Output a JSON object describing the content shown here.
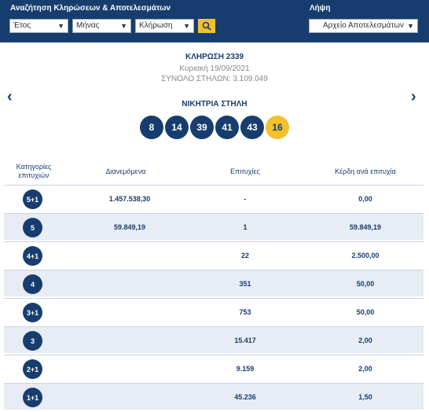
{
  "search": {
    "title": "Αναζήτηση Κληρώσεων & Αποτελεσμάτων",
    "year": "Έτος",
    "month": "Μήνας",
    "draw": "Κλήρωση"
  },
  "download": {
    "title": "Λήψη",
    "select": "Αρχείο Αποτελεσμάτων"
  },
  "result": {
    "draw_title": "ΚΛΗΡΩΣΗ 2339",
    "date": "Κυριακή 19/09/2021",
    "columns": "ΣΥΝΟΛΟ ΣΤΗΛΩΝ: 3.109.049",
    "winning_title": "ΝΙΚΗΤΡΙΑ ΣΤΗΛΗ",
    "numbers": [
      "8",
      "14",
      "39",
      "41",
      "43"
    ],
    "joker": "16"
  },
  "table": {
    "headers": {
      "category": "Κατηγορίες επιτυχιών",
      "distributed": "Διανεμόμενα",
      "hits": "Επιτυχίες",
      "prize": "Κέρδη ανά επιτυχία"
    },
    "rows": [
      {
        "cat": "5+1",
        "distributed": "1.457.538,30",
        "hits": "-",
        "prize": "0,00"
      },
      {
        "cat": "5",
        "distributed": "59.849,19",
        "hits": "1",
        "prize": "59.849,19"
      },
      {
        "cat": "4+1",
        "distributed": "",
        "hits": "22",
        "prize": "2.500,00"
      },
      {
        "cat": "4",
        "distributed": "",
        "hits": "351",
        "prize": "50,00"
      },
      {
        "cat": "3+1",
        "distributed": "",
        "hits": "753",
        "prize": "50,00"
      },
      {
        "cat": "3",
        "distributed": "",
        "hits": "15.417",
        "prize": "2,00"
      },
      {
        "cat": "2+1",
        "distributed": "",
        "hits": "9.159",
        "prize": "2,00"
      },
      {
        "cat": "1+1",
        "distributed": "",
        "hits": "45.236",
        "prize": "1,50"
      }
    ]
  },
  "colors": {
    "navy": "#173d6e",
    "joker": "#f2c12e",
    "alt_row": "#e8ecf4"
  }
}
